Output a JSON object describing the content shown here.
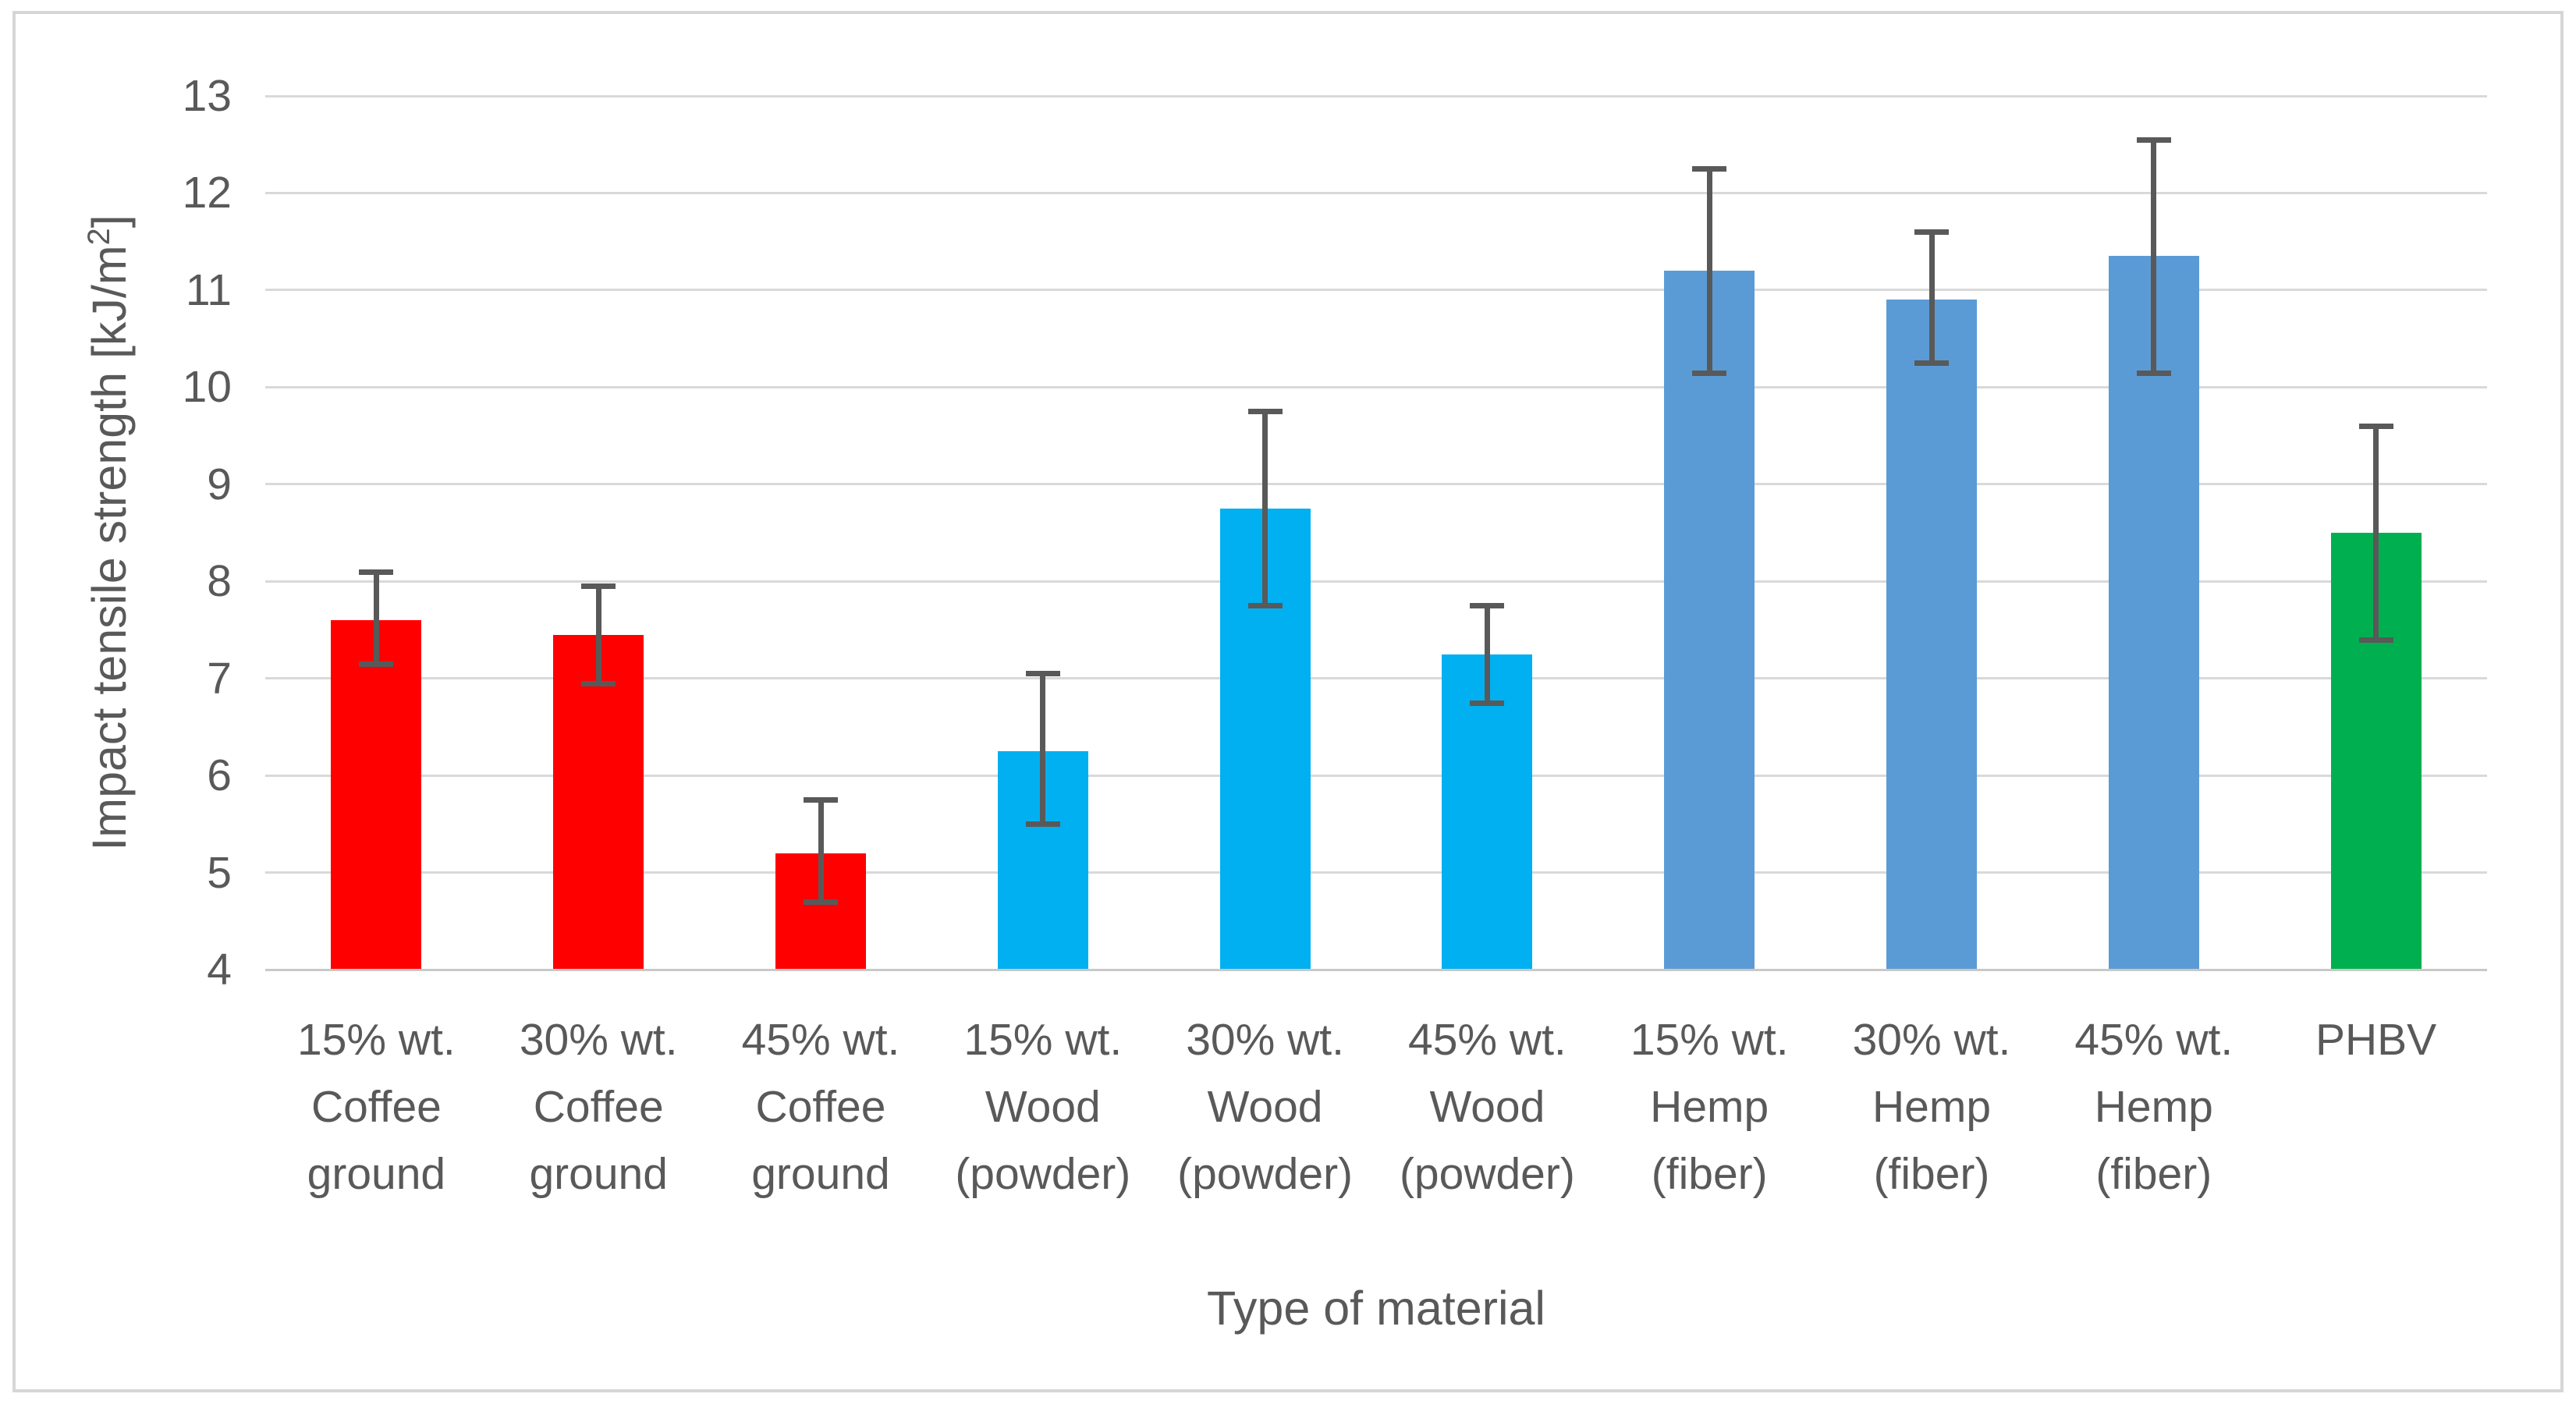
{
  "chart_data": {
    "type": "bar",
    "title": "",
    "xlabel": "Type of material",
    "ylabel": "Impact tensile strength [kJ/m²]",
    "ylim": [
      4,
      13
    ],
    "yticks": [
      4,
      5,
      6,
      7,
      8,
      9,
      10,
      11,
      12,
      13
    ],
    "grid": true,
    "legend": "none",
    "categories": [
      "15% wt. Coffee ground",
      "30% wt. Coffee ground",
      "45% wt. Coffee ground",
      "15% wt. Wood (powder)",
      "30% wt. Wood (powder)",
      "45% wt. Wood (powder)",
      "15% wt. Hemp (fiber)",
      "30% wt. Hemp (fiber)",
      "45% wt. Hemp (fiber)",
      "PHBV"
    ],
    "category_lines": [
      [
        "15% wt.",
        "Coffee",
        "ground"
      ],
      [
        "30% wt.",
        "Coffee",
        "ground"
      ],
      [
        "45% wt.",
        "Coffee",
        "ground"
      ],
      [
        "15% wt.",
        "Wood",
        "(powder)"
      ],
      [
        "30% wt.",
        "Wood",
        "(powder)"
      ],
      [
        "45% wt.",
        "Wood",
        "(powder)"
      ],
      [
        "15% wt.",
        "Hemp",
        "(fiber)"
      ],
      [
        "30% wt.",
        "Hemp",
        "(fiber)"
      ],
      [
        "45% wt.",
        "Hemp",
        "(fiber)"
      ],
      [
        "PHBV"
      ]
    ],
    "values": [
      7.6,
      7.45,
      5.2,
      6.25,
      8.75,
      7.25,
      11.2,
      10.9,
      11.35,
      8.5
    ],
    "error_low": [
      7.15,
      6.95,
      4.7,
      5.5,
      7.75,
      6.75,
      10.15,
      10.25,
      10.15,
      7.4
    ],
    "error_high": [
      8.1,
      7.95,
      5.75,
      7.05,
      9.75,
      7.75,
      12.25,
      11.6,
      12.55,
      9.6
    ],
    "bar_colors": [
      "#FF0000",
      "#FF0000",
      "#FF0000",
      "#00B0F0",
      "#00B0F0",
      "#00B0F0",
      "#5B9BD5",
      "#5B9BD5",
      "#5B9BD5",
      "#00B050"
    ],
    "color_groups": [
      {
        "label": "Coffee ground",
        "color": "#FF0000"
      },
      {
        "label": "Wood (powder)",
        "color": "#00B0F0"
      },
      {
        "label": "Hemp (fiber)",
        "color": "#5B9BD5"
      },
      {
        "label": "PHBV",
        "color": "#00B050"
      }
    ]
  },
  "colors": {
    "grid": "#D9D9D9",
    "axis_line": "#C9C9C9",
    "text": "#595959",
    "error_bar": "#595959",
    "frame": "#D6D6D6",
    "background": "#FFFFFF"
  }
}
